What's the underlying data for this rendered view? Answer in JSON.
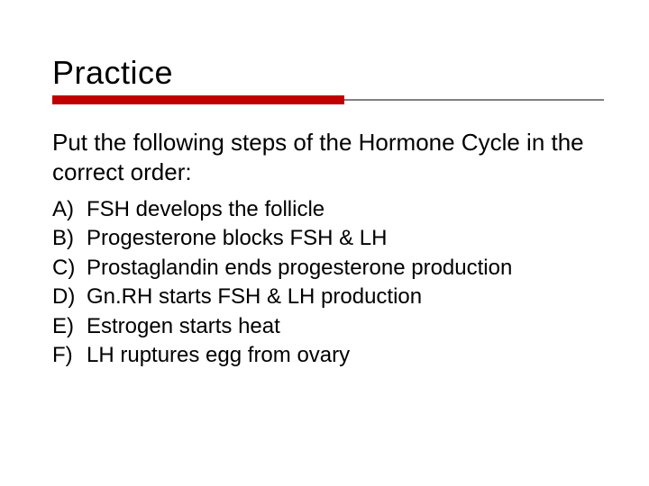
{
  "slide": {
    "title": "Practice",
    "prompt": "Put the following steps of the Hormone Cycle in the correct order:",
    "items": [
      {
        "label": "A)",
        "text": "FSH develops the follicle"
      },
      {
        "label": "B)",
        "text": "Progesterone blocks FSH & LH"
      },
      {
        "label": "C)",
        "text": "Prostaglandin ends progesterone production"
      },
      {
        "label": "D)",
        "text": "Gn.RH starts FSH & LH production"
      },
      {
        "label": "E)",
        "text": "Estrogen starts heat"
      },
      {
        "label": "F)",
        "text": "LH ruptures egg from ovary"
      }
    ],
    "style": {
      "title_fontsize": 36,
      "prompt_fontsize": 26,
      "item_fontsize": 24,
      "text_color": "#000000",
      "background_color": "#ffffff",
      "rule_red_color": "#c00000",
      "rule_grey_color": "#808080",
      "rule_red_width_pct": 53,
      "font_family": "Verdana"
    }
  }
}
